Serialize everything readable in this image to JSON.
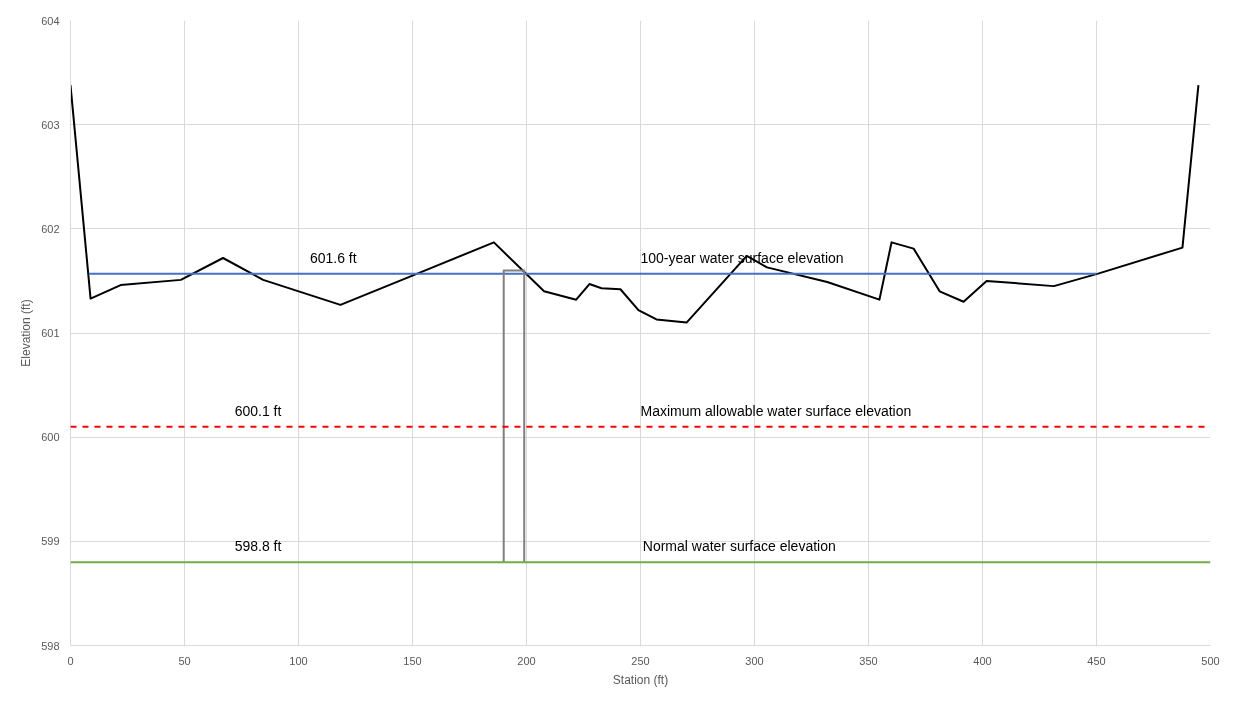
{
  "chart_data": {
    "type": "line",
    "xlabel": "Station (ft)",
    "ylabel": "Elevation (ft)",
    "xlim": [
      0,
      500
    ],
    "ylim": [
      598,
      604
    ],
    "xticks": [
      0,
      50,
      100,
      150,
      200,
      250,
      300,
      350,
      400,
      450,
      500
    ],
    "yticks": [
      598,
      599,
      600,
      601,
      602,
      603,
      604
    ],
    "grid": true,
    "marker": "none",
    "series": [
      {
        "color": "#000000",
        "line_style": "solid",
        "x": [
          0,
          8.8,
          22,
          48.4,
          66.9,
          84.5,
          118.4,
          153.2,
          185.7,
          207.7,
          221.8,
          227.6,
          232.9,
          241.2,
          249.1,
          257,
          270.2,
          296.6,
          305.5,
          331.9,
          354.8,
          360.1,
          369.8,
          381.2,
          391.7,
          401.8,
          431.3,
          450.7,
          487.7,
          494.7
        ],
        "values": [
          603.38,
          601.33,
          601.46,
          601.51,
          601.72,
          601.51,
          601.27,
          601.58,
          601.87,
          601.4,
          601.32,
          601.47,
          601.43,
          601.42,
          601.22,
          601.13,
          601.1,
          601.74,
          601.63,
          601.49,
          601.32,
          601.87,
          601.81,
          601.4,
          601.3,
          601.5,
          601.45,
          601.57,
          601.82,
          603.38
        ]
      },
      {
        "color": "#4472c4",
        "line_style": "solid",
        "x": [
          8,
          450
        ],
        "values": [
          601.57,
          601.57
        ]
      },
      {
        "color": "#808080",
        "line_style": "solid",
        "x": [
          190,
          190,
          199,
          199
        ],
        "values": [
          598.8,
          601.6,
          601.6,
          598.8
        ]
      }
    ],
    "ref_lines": [
      {
        "axis": "y",
        "value": 600.1,
        "color": "#ff0000",
        "line_style": "dashed"
      },
      {
        "axis": "y",
        "value": 598.8,
        "color": "#70ad47",
        "line_style": "solid"
      }
    ],
    "annotations": [
      {
        "text": "601.6 ft",
        "x": 105,
        "y": 601.57
      },
      {
        "text": "100-year water surface elevation",
        "x": 250,
        "y": 601.57
      },
      {
        "text": "600.1 ft",
        "x": 72,
        "y": 600.1
      },
      {
        "text": "Maximum allowable water surface elevation",
        "x": 250,
        "y": 600.1
      },
      {
        "text": "598.8 ft",
        "x": 72,
        "y": 598.8
      },
      {
        "text": "Normal water surface elevation",
        "x": 251,
        "y": 598.8
      }
    ]
  }
}
